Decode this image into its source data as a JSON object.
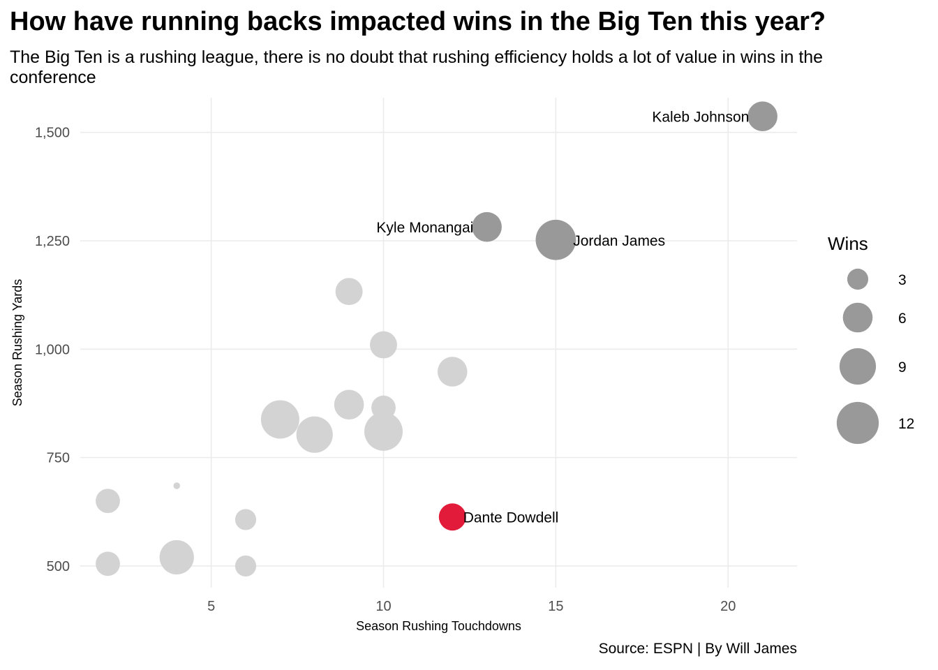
{
  "title": "How have running backs impacted wins in the Big Ten this year?",
  "subtitle": "The Big Ten is a rushing league, there is no doubt that rushing efficiency holds a lot of value in wins in the conference",
  "caption": "Source: ESPN | By Will James",
  "chart_data": {
    "type": "scatter",
    "xlabel": "Season Rushing Touchdowns",
    "ylabel": "Season Rushing Yards",
    "xlim": [
      1.2,
      22
    ],
    "ylim": [
      450,
      1580
    ],
    "x_ticks": [
      5,
      10,
      15,
      20
    ],
    "y_ticks": [
      500,
      750,
      1000,
      1250,
      1500
    ],
    "y_tick_labels": [
      "500",
      "750",
      "1,000",
      "1,250",
      "1,500"
    ],
    "grid": true,
    "size_legend": {
      "title": "Wins",
      "values": [
        3,
        6,
        9,
        12
      ],
      "position": "right"
    },
    "colors": {
      "highlight": "#e31b3a",
      "labeled": "#999999",
      "other": "#d3d3d3"
    },
    "points": [
      {
        "x": 21,
        "y": 1537,
        "wins": 6,
        "label": "Kaleb Johnson",
        "group": "labeled"
      },
      {
        "x": 13,
        "y": 1282,
        "wins": 6,
        "label": "Kyle Monangai",
        "group": "labeled"
      },
      {
        "x": 15,
        "y": 1252,
        "wins": 11,
        "label": "Jordan James",
        "group": "labeled"
      },
      {
        "x": 12,
        "y": 613,
        "wins": 5,
        "label": "Dante Dowdell",
        "group": "highlight"
      },
      {
        "x": 9,
        "y": 1133,
        "wins": 5,
        "group": "other"
      },
      {
        "x": 10,
        "y": 1010,
        "wins": 5,
        "group": "other"
      },
      {
        "x": 12,
        "y": 948,
        "wins": 6,
        "group": "other"
      },
      {
        "x": 9,
        "y": 872,
        "wins": 6,
        "group": "other"
      },
      {
        "x": 10,
        "y": 865,
        "wins": 4,
        "group": "other"
      },
      {
        "x": 7,
        "y": 838,
        "wins": 10,
        "group": "other"
      },
      {
        "x": 8,
        "y": 803,
        "wins": 9,
        "group": "other"
      },
      {
        "x": 10,
        "y": 810,
        "wins": 10,
        "group": "other"
      },
      {
        "x": 4,
        "y": 685,
        "wins": 0.3,
        "group": "other"
      },
      {
        "x": 2,
        "y": 650,
        "wins": 4,
        "group": "other"
      },
      {
        "x": 6,
        "y": 607,
        "wins": 3,
        "group": "other"
      },
      {
        "x": 2,
        "y": 505,
        "wins": 4,
        "group": "other"
      },
      {
        "x": 4,
        "y": 520,
        "wins": 8,
        "group": "other"
      },
      {
        "x": 6,
        "y": 500,
        "wins": 3,
        "group": "other"
      }
    ]
  }
}
